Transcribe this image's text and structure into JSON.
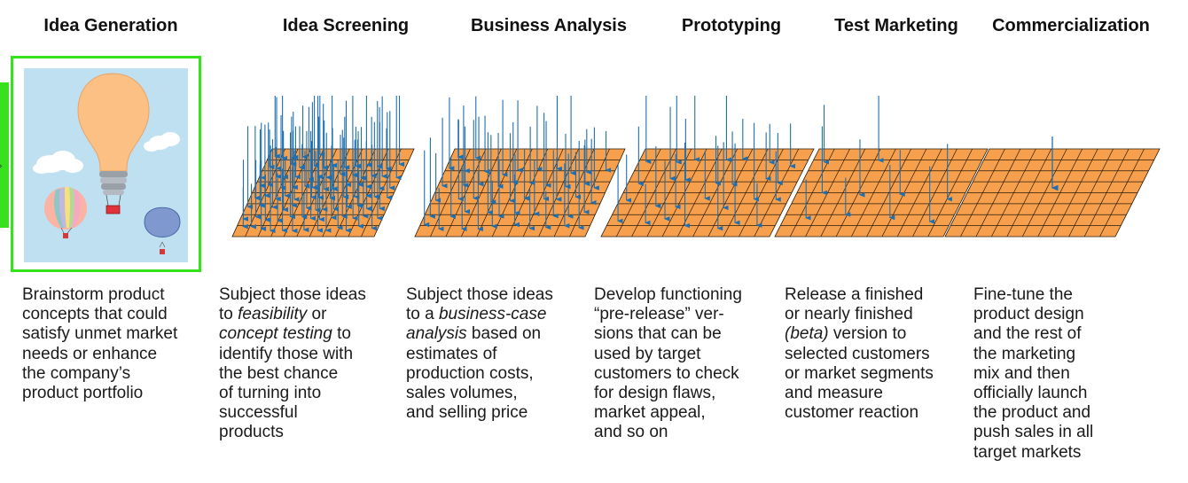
{
  "stages": [
    {
      "id": "idea-generation",
      "title": "Idea Generation",
      "description": [
        [
          {
            "t": "Brainstorm product"
          }
        ],
        [
          {
            "t": "concepts that could"
          }
        ],
        [
          {
            "t": "satisfy unmet market"
          }
        ],
        [
          {
            "t": "needs or enhance"
          }
        ],
        [
          {
            "t": "the company’s"
          }
        ],
        [
          {
            "t": "product portfolio"
          }
        ]
      ]
    },
    {
      "id": "idea-screening",
      "title": "Idea Screening",
      "description": [
        [
          {
            "t": "Subject those ideas"
          }
        ],
        [
          {
            "t": "to "
          },
          {
            "t": "feasibility",
            "i": true
          },
          {
            "t": " or"
          }
        ],
        [
          {
            "t": "concept testing",
            "i": true
          },
          {
            "t": " to"
          }
        ],
        [
          {
            "t": "identify those with"
          }
        ],
        [
          {
            "t": "the best chance"
          }
        ],
        [
          {
            "t": "of turning into"
          }
        ],
        [
          {
            "t": "successful"
          }
        ],
        [
          {
            "t": "products"
          }
        ]
      ]
    },
    {
      "id": "business-analysis",
      "title": "Business Analysis",
      "description": [
        [
          {
            "t": "Subject those ideas"
          }
        ],
        [
          {
            "t": "to a "
          },
          {
            "t": "business-case",
            "i": true
          }
        ],
        [
          {
            "t": "analysis",
            "i": true
          },
          {
            "t": " based on"
          }
        ],
        [
          {
            "t": "estimates of"
          }
        ],
        [
          {
            "t": "production costs,"
          }
        ],
        [
          {
            "t": "sales volumes,"
          }
        ],
        [
          {
            "t": "and selling price"
          }
        ]
      ]
    },
    {
      "id": "prototyping",
      "title": "Prototyping",
      "description": [
        [
          {
            "t": "Develop functioning"
          }
        ],
        [
          {
            "t": "“pre-release” ver-"
          }
        ],
        [
          {
            "t": "sions that can be"
          }
        ],
        [
          {
            "t": "used by target"
          }
        ],
        [
          {
            "t": "customers to check"
          }
        ],
        [
          {
            "t": "for design flaws,"
          }
        ],
        [
          {
            "t": "market appeal,"
          }
        ],
        [
          {
            "t": "and so on"
          }
        ]
      ]
    },
    {
      "id": "test-marketing",
      "title": "Test Marketing",
      "description": [
        [
          {
            "t": "Release a finished"
          }
        ],
        [
          {
            "t": "or nearly finished"
          }
        ],
        [
          {
            "t": "(beta)",
            "i": true
          },
          {
            "t": " version to"
          }
        ],
        [
          {
            "t": "selected customers"
          }
        ],
        [
          {
            "t": "or market segments"
          }
        ],
        [
          {
            "t": "and measure"
          }
        ],
        [
          {
            "t": "customer reaction"
          }
        ]
      ]
    },
    {
      "id": "commercialization",
      "title": "Commercialization",
      "description": [
        [
          {
            "t": "Fine-tune the"
          }
        ],
        [
          {
            "t": "product design"
          }
        ],
        [
          {
            "t": "and the rest of"
          }
        ],
        [
          {
            "t": "the marketing"
          }
        ],
        [
          {
            "t": "mix and then"
          }
        ],
        [
          {
            "t": "officially launch"
          }
        ],
        [
          {
            "t": "the product and"
          }
        ],
        [
          {
            "t": "push sales in all"
          }
        ],
        [
          {
            "t": "target markets"
          }
        ]
      ]
    }
  ],
  "idea_count_per_stage": [
    0,
    96,
    52,
    28,
    10,
    1
  ],
  "colors": {
    "grid_fill": "#f6a04d",
    "grid_line": "#2a1a0a",
    "arrow": "#1f6fb0",
    "highlight": "#35e31a",
    "sky": "#bfe0f0",
    "bulb": "#fdc084"
  },
  "icons": [
    "lightbulb-balloon-icon",
    "hot-air-balloon-icon",
    "cloud-icon",
    "funnel-grid-icon",
    "idea-arrow-icon"
  ]
}
